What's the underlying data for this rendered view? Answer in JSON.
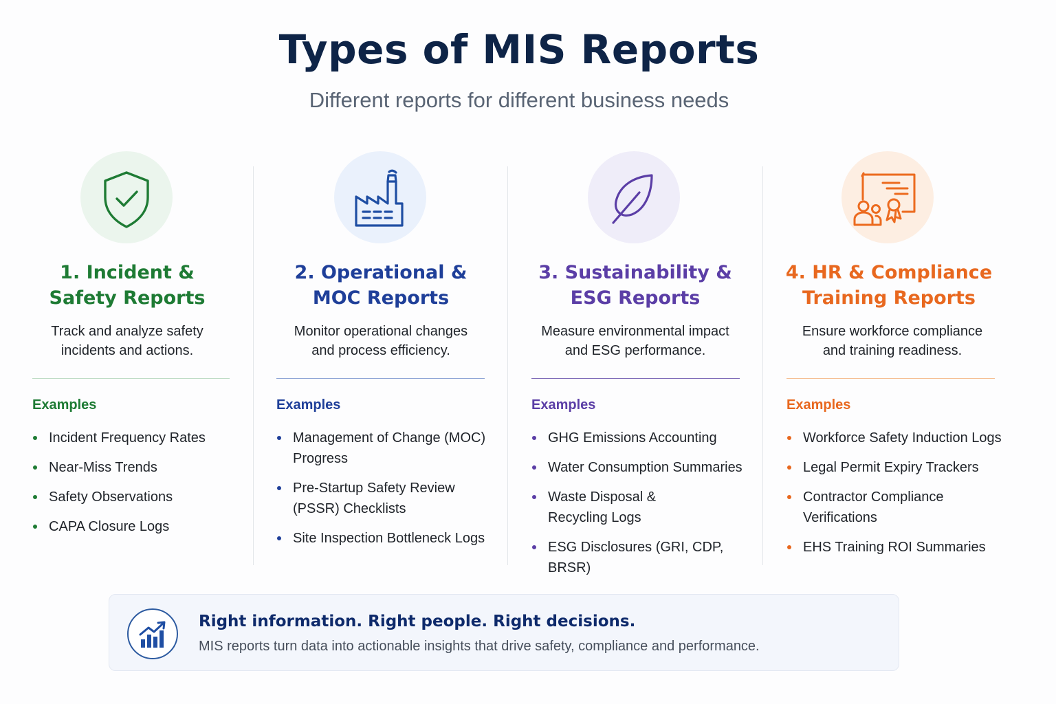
{
  "header": {
    "title": "Types of MIS Reports",
    "subtitle": "Different reports for different business needs"
  },
  "cards": [
    {
      "title_line1": "1. Incident &",
      "title_line2": "Safety Reports",
      "desc_line1": "Track and analyze safety",
      "desc_line2": "incidents and actions.",
      "examples_label": "Examples",
      "icon": "shield-check-icon",
      "color": "#1e7b34",
      "icon_bg": "#ebf5ed",
      "examples": [
        [
          "Incident Frequency Rates"
        ],
        [
          "Near-Miss Trends"
        ],
        [
          "Safety Observations"
        ],
        [
          "CAPA Closure Logs"
        ]
      ]
    },
    {
      "title_line1": "2. Operational &",
      "title_line2": "MOC Reports",
      "desc_line1": "Monitor operational changes",
      "desc_line2": "and process efficiency.",
      "examples_label": "Examples",
      "icon": "factory-icon",
      "color": "#1f3f99",
      "icon_bg": "#eaf1fc",
      "examples": [
        [
          "Management of Change (MOC)",
          "Progress"
        ],
        [
          "Pre-Startup Safety Review",
          "(PSSR) Checklists"
        ],
        [
          "Site Inspection Bottleneck Logs"
        ]
      ]
    },
    {
      "title_line1": "3. Sustainability &",
      "title_line2": "ESG Reports",
      "desc_line1": "Measure environmental impact",
      "desc_line2": "and ESG performance.",
      "examples_label": "Examples",
      "icon": "leaf-icon",
      "color": "#5b3ea6",
      "icon_bg": "#efedf9",
      "examples": [
        [
          "GHG Emissions Accounting"
        ],
        [
          "Water Consumption Summaries"
        ],
        [
          "Waste Disposal &",
          "Recycling Logs"
        ],
        [
          "ESG Disclosures (GRI, CDP, BRSR)"
        ]
      ]
    },
    {
      "title_line1": "4. HR & Compliance",
      "title_line2": "Training Reports",
      "desc_line1": "Ensure workforce compliance",
      "desc_line2": "and training readiness.",
      "examples_label": "Examples",
      "icon": "training-certificate-icon",
      "color": "#e8681f",
      "icon_bg": "#fdeee2",
      "examples": [
        [
          "Workforce Safety Induction Logs"
        ],
        [
          "Legal Permit Expiry Trackers"
        ],
        [
          "Contractor Compliance",
          "Verifications"
        ],
        [
          "EHS Training ROI Summaries"
        ]
      ]
    }
  ],
  "footer": {
    "icon": "bar-chart-growth-icon",
    "title": "Right information. Right people. Right decisions.",
    "text": "MIS reports turn data into actionable insights that drive safety, compliance and performance."
  }
}
